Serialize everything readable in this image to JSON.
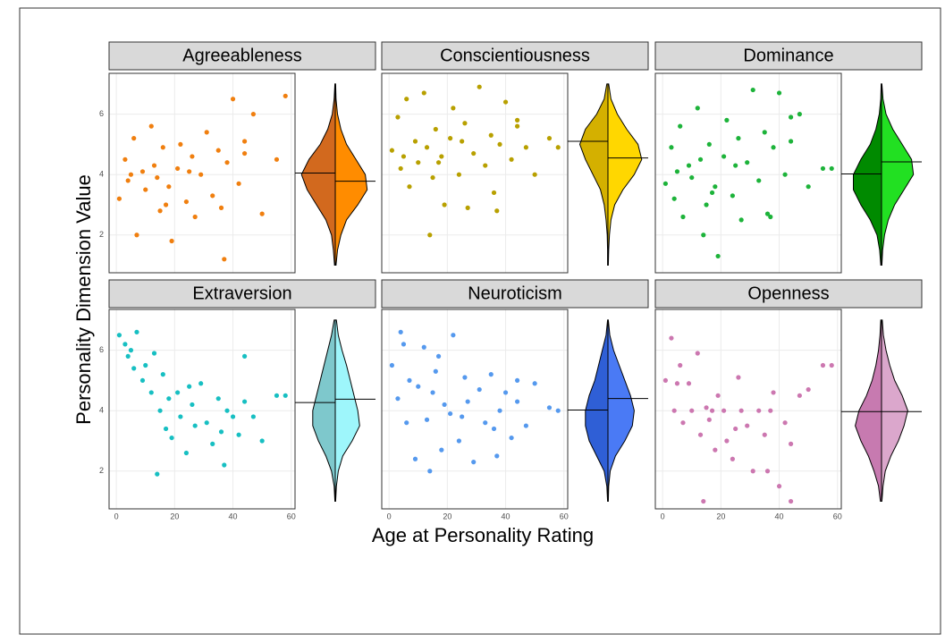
{
  "ylabel": "Personality Dimension Value",
  "xlabel": "Age at Personality Rating",
  "chart_data": [
    {
      "type": "scatter",
      "title": "Agreeableness",
      "color": "#f07f0f",
      "x": [
        1,
        3,
        4,
        6,
        7,
        9,
        10,
        12,
        13,
        15,
        16,
        18,
        19,
        21,
        22,
        24,
        26,
        27,
        29,
        31,
        33,
        35,
        36,
        38,
        40,
        42,
        44,
        47,
        50,
        55,
        58,
        5,
        14,
        25,
        37,
        44,
        17
      ],
      "y": [
        3.2,
        4.5,
        3.8,
        5.2,
        2.0,
        4.1,
        3.5,
        5.6,
        4.3,
        2.8,
        4.9,
        3.6,
        1.8,
        4.2,
        5.0,
        3.1,
        4.6,
        2.6,
        4.0,
        5.4,
        3.3,
        4.8,
        2.9,
        4.4,
        6.5,
        3.7,
        5.1,
        6.0,
        2.7,
        4.5,
        6.6,
        4.0,
        3.9,
        4.1,
        1.2,
        4.7,
        3.0
      ],
      "xlim": [
        -2.5,
        61.3
      ],
      "ylim": [
        0.75,
        7.35
      ],
      "xticks": [
        0,
        20,
        40,
        60
      ],
      "yticks": [
        2,
        4,
        6
      ],
      "violin": {
        "y": [
          1,
          1.5,
          2,
          2.5,
          3,
          3.5,
          4,
          4.5,
          5,
          5.5,
          6,
          6.5,
          7
        ],
        "left": [
          0.02,
          0.05,
          0.1,
          0.25,
          0.5,
          0.75,
          0.9,
          0.7,
          0.4,
          0.2,
          0.08,
          0.03,
          0.01
        ],
        "right": [
          0.02,
          0.06,
          0.15,
          0.3,
          0.6,
          0.85,
          0.8,
          0.55,
          0.3,
          0.15,
          0.06,
          0.02,
          0.01
        ],
        "left_median": 4.05,
        "right_median": 3.78,
        "left_color": "#d2691e",
        "right_color": "#ff8c00"
      }
    },
    {
      "type": "scatter",
      "title": "Conscientiousness",
      "color": "#b8a000",
      "x": [
        1,
        3,
        4,
        6,
        7,
        9,
        10,
        12,
        13,
        15,
        16,
        18,
        19,
        21,
        22,
        24,
        26,
        27,
        29,
        31,
        33,
        35,
        36,
        38,
        40,
        42,
        44,
        47,
        50,
        55,
        58,
        5,
        14,
        25,
        37,
        44,
        17
      ],
      "y": [
        4.8,
        5.9,
        4.2,
        6.5,
        3.6,
        5.1,
        4.4,
        6.7,
        4.9,
        3.9,
        5.5,
        4.6,
        3.0,
        5.2,
        6.2,
        4.0,
        5.7,
        2.9,
        4.7,
        6.9,
        4.3,
        5.3,
        3.4,
        5.0,
        6.4,
        4.5,
        5.8,
        4.9,
        4.0,
        5.2,
        4.9,
        4.6,
        2.0,
        5.1,
        2.8,
        5.6,
        4.4
      ],
      "xlim": [
        -2.5,
        61.3
      ],
      "ylim": [
        0.75,
        7.35
      ],
      "xticks": [
        0,
        20,
        40,
        60
      ],
      "yticks": [
        2,
        4,
        6
      ],
      "violin": {
        "y": [
          1,
          1.5,
          2,
          2.5,
          3,
          3.5,
          4,
          4.5,
          5,
          5.5,
          6,
          6.5,
          7
        ],
        "left": [
          0.01,
          0.01,
          0.02,
          0.05,
          0.1,
          0.2,
          0.4,
          0.6,
          0.75,
          0.6,
          0.3,
          0.1,
          0.03
        ],
        "right": [
          0.01,
          0.02,
          0.04,
          0.08,
          0.18,
          0.4,
          0.7,
          0.9,
          0.8,
          0.5,
          0.25,
          0.08,
          0.02
        ],
        "left_median": 5.1,
        "right_median": 4.55,
        "left_color": "#d4b000",
        "right_color": "#ffd700"
      }
    },
    {
      "type": "scatter",
      "title": "Dominance",
      "color": "#1db33a",
      "x": [
        1,
        3,
        4,
        6,
        7,
        9,
        10,
        12,
        13,
        15,
        16,
        18,
        19,
        21,
        22,
        24,
        26,
        27,
        29,
        31,
        33,
        35,
        36,
        38,
        40,
        42,
        44,
        47,
        50,
        55,
        58,
        5,
        14,
        25,
        37,
        44,
        17
      ],
      "y": [
        3.7,
        4.9,
        3.2,
        5.6,
        2.6,
        4.3,
        3.9,
        6.2,
        4.5,
        3.0,
        5.0,
        3.6,
        1.3,
        4.6,
        5.8,
        3.3,
        5.2,
        2.5,
        4.4,
        6.8,
        3.8,
        5.4,
        2.7,
        4.9,
        6.7,
        4.0,
        5.9,
        6.0,
        3.6,
        4.2,
        4.2,
        4.1,
        2.0,
        4.3,
        2.6,
        5.1,
        3.4
      ],
      "xlim": [
        -2.5,
        61.3
      ],
      "ylim": [
        0.75,
        7.35
      ],
      "xticks": [
        0,
        20,
        40,
        60
      ],
      "yticks": [
        2,
        4,
        6
      ],
      "violin": {
        "y": [
          1,
          1.5,
          2,
          2.5,
          3,
          3.5,
          4,
          4.5,
          5,
          5.5,
          6,
          6.5,
          7
        ],
        "left": [
          0.02,
          0.05,
          0.12,
          0.3,
          0.55,
          0.75,
          0.75,
          0.55,
          0.3,
          0.15,
          0.06,
          0.02,
          0.01
        ],
        "right": [
          0.01,
          0.03,
          0.08,
          0.18,
          0.35,
          0.6,
          0.85,
          0.8,
          0.55,
          0.3,
          0.12,
          0.04,
          0.01
        ],
        "left_median": 4.02,
        "right_median": 4.42,
        "left_color": "#008a00",
        "right_color": "#22e022"
      }
    },
    {
      "type": "scatter",
      "title": "Extraversion",
      "color": "#17bfc2",
      "x": [
        1,
        3,
        4,
        6,
        7,
        9,
        10,
        12,
        13,
        15,
        16,
        18,
        19,
        21,
        22,
        24,
        26,
        27,
        29,
        31,
        33,
        35,
        36,
        38,
        40,
        42,
        44,
        47,
        50,
        55,
        58,
        5,
        14,
        25,
        37,
        44,
        17
      ],
      "y": [
        6.5,
        6.2,
        5.8,
        5.4,
        6.6,
        5.0,
        5.5,
        4.6,
        5.9,
        4.0,
        5.2,
        4.4,
        3.1,
        4.6,
        3.8,
        2.6,
        4.2,
        3.5,
        4.9,
        3.6,
        2.9,
        4.4,
        3.3,
        4.0,
        3.8,
        3.2,
        5.8,
        3.8,
        3.0,
        4.5,
        4.5,
        6.0,
        1.9,
        4.8,
        2.2,
        4.3,
        3.4
      ],
      "xlim": [
        -2.5,
        61.3
      ],
      "ylim": [
        0.75,
        7.35
      ],
      "xticks": [
        0,
        20,
        40,
        60
      ],
      "yticks": [
        2,
        4,
        6
      ],
      "violin": {
        "y": [
          1,
          1.5,
          2,
          2.5,
          3,
          3.5,
          4,
          4.5,
          5,
          5.5,
          6,
          6.5,
          7
        ],
        "left": [
          0.01,
          0.03,
          0.1,
          0.25,
          0.45,
          0.6,
          0.6,
          0.5,
          0.4,
          0.3,
          0.2,
          0.1,
          0.03
        ],
        "right": [
          0.01,
          0.03,
          0.08,
          0.2,
          0.45,
          0.65,
          0.6,
          0.5,
          0.4,
          0.3,
          0.18,
          0.08,
          0.03
        ],
        "left_median": 4.27,
        "right_median": 4.38,
        "left_color": "#7ec8cc",
        "right_color": "#9ef6fb"
      }
    },
    {
      "type": "scatter",
      "title": "Neuroticism",
      "color": "#5599ee",
      "x": [
        1,
        3,
        4,
        6,
        7,
        9,
        10,
        12,
        13,
        15,
        16,
        18,
        19,
        21,
        22,
        24,
        26,
        27,
        29,
        31,
        33,
        35,
        36,
        38,
        40,
        42,
        44,
        47,
        50,
        55,
        58,
        5,
        14,
        25,
        37,
        44,
        17
      ],
      "y": [
        5.5,
        4.4,
        6.6,
        3.6,
        5.0,
        2.4,
        4.8,
        6.1,
        3.7,
        4.6,
        5.3,
        2.7,
        4.2,
        3.9,
        6.5,
        3.0,
        5.1,
        4.3,
        2.3,
        4.7,
        3.6,
        5.2,
        3.4,
        4.0,
        4.6,
        3.1,
        5.0,
        3.5,
        4.9,
        4.1,
        4.0,
        6.2,
        2.0,
        3.8,
        2.5,
        4.3,
        5.8
      ],
      "xlim": [
        -2.5,
        61.3
      ],
      "ylim": [
        0.75,
        7.35
      ],
      "xticks": [
        0,
        20,
        40,
        60
      ],
      "yticks": [
        2,
        4,
        6
      ],
      "violin": {
        "y": [
          1,
          1.5,
          2,
          2.5,
          3,
          3.5,
          4,
          4.5,
          5,
          5.5,
          6,
          6.5,
          7
        ],
        "left": [
          0.01,
          0.03,
          0.1,
          0.3,
          0.5,
          0.6,
          0.6,
          0.5,
          0.35,
          0.25,
          0.15,
          0.05,
          0.01
        ],
        "right": [
          0.01,
          0.02,
          0.06,
          0.2,
          0.45,
          0.65,
          0.7,
          0.6,
          0.45,
          0.3,
          0.15,
          0.05,
          0.01
        ],
        "left_median": 4.02,
        "right_median": 4.4,
        "left_color": "#2f5fd6",
        "right_color": "#4a7af5"
      }
    },
    {
      "type": "scatter",
      "title": "Openness",
      "color": "#cc77b0",
      "x": [
        1,
        3,
        4,
        6,
        7,
        9,
        10,
        12,
        13,
        15,
        16,
        18,
        19,
        21,
        22,
        24,
        26,
        27,
        29,
        31,
        33,
        35,
        36,
        38,
        40,
        42,
        44,
        47,
        50,
        55,
        58,
        5,
        14,
        25,
        37,
        44,
        17
      ],
      "y": [
        5.0,
        6.4,
        4.0,
        5.5,
        3.6,
        4.9,
        4.0,
        5.9,
        3.2,
        4.1,
        3.7,
        2.7,
        4.5,
        4.0,
        3.0,
        2.4,
        5.1,
        4.0,
        3.5,
        2.0,
        4.0,
        3.2,
        2.0,
        4.6,
        1.5,
        3.6,
        2.9,
        4.5,
        4.7,
        5.5,
        5.5,
        4.9,
        1.0,
        3.4,
        4.0,
        1.0,
        4.0
      ],
      "xlim": [
        -2.5,
        61.3
      ],
      "ylim": [
        0.75,
        7.35
      ],
      "xticks": [
        0,
        20,
        40,
        60
      ],
      "yticks": [
        2,
        4,
        6
      ],
      "violin": {
        "y": [
          1,
          1.5,
          2,
          2.5,
          3,
          3.5,
          4,
          4.5,
          5,
          5.5,
          6,
          6.5,
          7
        ],
        "left": [
          0.03,
          0.08,
          0.2,
          0.35,
          0.55,
          0.7,
          0.6,
          0.4,
          0.25,
          0.15,
          0.08,
          0.04,
          0.02
        ],
        "right": [
          0.01,
          0.04,
          0.1,
          0.25,
          0.45,
          0.6,
          0.7,
          0.55,
          0.35,
          0.22,
          0.12,
          0.05,
          0.02
        ],
        "left_median": 3.97,
        "right_median": 3.97,
        "left_color": "#c77ab0",
        "right_color": "#dba7cc"
      }
    }
  ]
}
